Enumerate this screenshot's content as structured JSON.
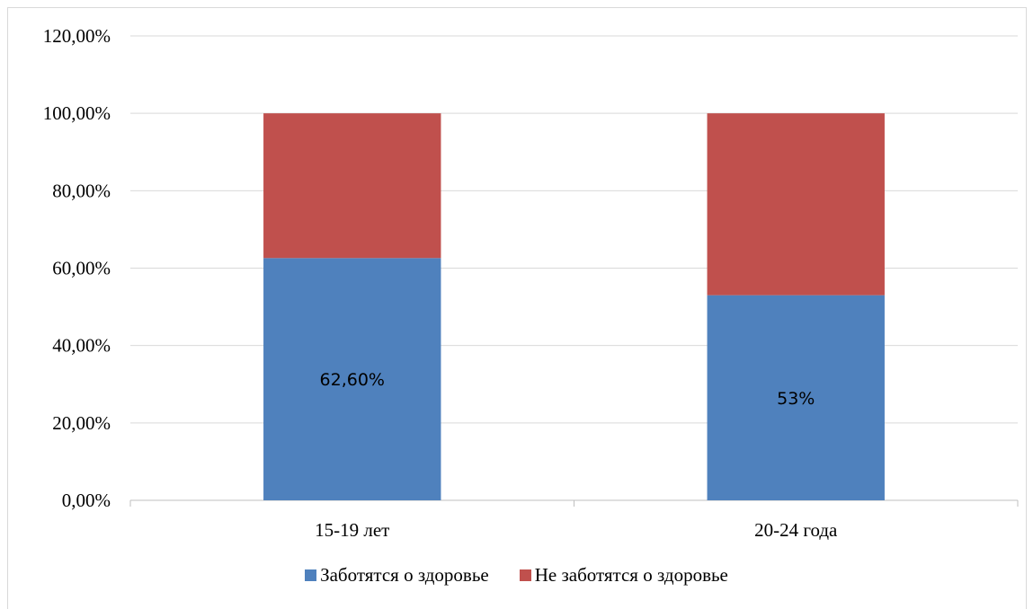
{
  "chart_data": {
    "type": "bar",
    "stacked": true,
    "categories": [
      "15-19 лет",
      "20-24 года"
    ],
    "series": [
      {
        "name": "Заботятся о здоровье",
        "values": [
          62.6,
          53
        ],
        "color": "#4f81bd",
        "data_labels": [
          "62,60%",
          "53%"
        ]
      },
      {
        "name": "Не заботятся о здоровье",
        "values": [
          37.4,
          47
        ],
        "color": "#c0504d"
      }
    ],
    "y_ticks": [
      "0,00%",
      "20,00%",
      "40,00%",
      "60,00%",
      "80,00%",
      "100,00%",
      "120,00%"
    ],
    "ylim": [
      0,
      120
    ],
    "grid": true,
    "legend_position": "bottom",
    "title": "",
    "xlabel": "",
    "ylabel": ""
  }
}
